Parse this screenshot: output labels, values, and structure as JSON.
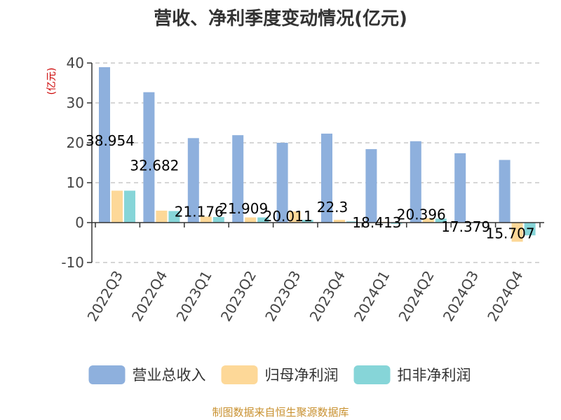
{
  "chart_data": {
    "type": "bar",
    "title": "营收、净利季度变动情况(亿元)",
    "ylabel": "(亿元)",
    "ylim": [
      -10,
      40
    ],
    "yticks": [
      -10,
      0,
      10,
      20,
      30,
      40
    ],
    "grid": true,
    "legend_position": "bottom",
    "categories": [
      "2022Q3",
      "2022Q4",
      "2023Q1",
      "2023Q2",
      "2023Q3",
      "2023Q4",
      "2024Q1",
      "2024Q2",
      "2024Q3",
      "2024Q4"
    ],
    "series": [
      {
        "name": "营业总收入",
        "color": "#8eb0dd",
        "values": [
          38.954,
          32.682,
          21.176,
          21.909,
          20.011,
          22.3,
          18.413,
          20.396,
          17.379,
          15.707
        ],
        "labels": [
          "38.954",
          "32.682",
          "21.176",
          "21.909",
          "20.011",
          "22.3",
          "18.413",
          "20.396",
          "17.379",
          "15.707"
        ]
      },
      {
        "name": "归母净利润",
        "color": "#fdd898",
        "values": [
          8.0,
          3.0,
          1.5,
          1.3,
          2.8,
          0.7,
          0.2,
          1.1,
          0.1,
          -4.8
        ]
      },
      {
        "name": "扣非净利润",
        "color": "#86d5d8",
        "values": [
          8.0,
          2.9,
          1.4,
          1.3,
          0.7,
          0.3,
          -0.3,
          1.0,
          0.0,
          -3.2
        ]
      }
    ]
  },
  "source": "制图数据来自恒生聚源数据库"
}
